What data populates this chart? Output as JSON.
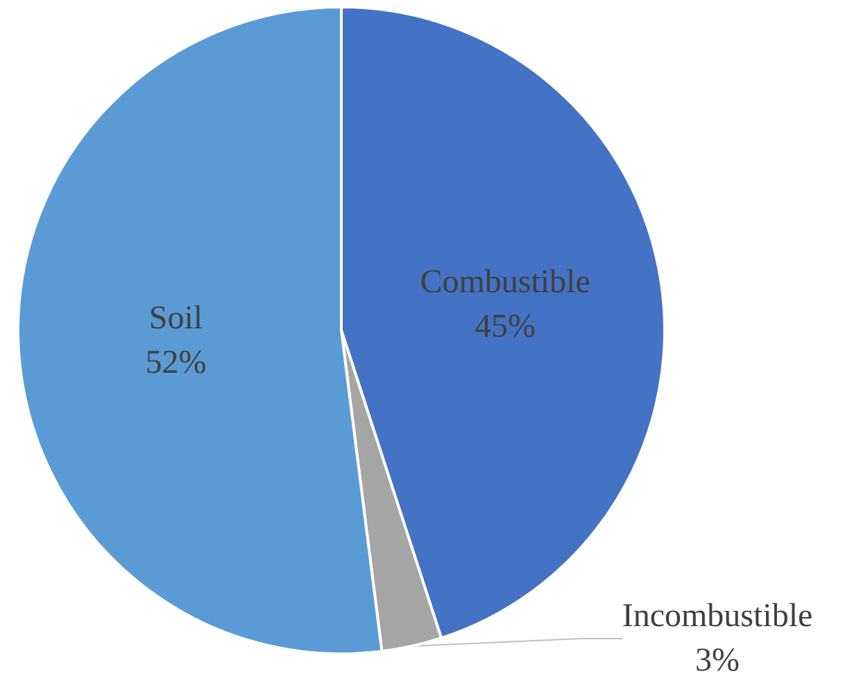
{
  "chart_data": {
    "type": "pie",
    "categories": [
      "Combustible",
      "Incombustible",
      "Soil"
    ],
    "values": [
      45,
      3,
      52
    ],
    "colors": [
      "#4472c4",
      "#a5a5a5",
      "#5b9bd5"
    ],
    "value_labels": [
      "45%",
      "3%",
      "52%"
    ]
  }
}
